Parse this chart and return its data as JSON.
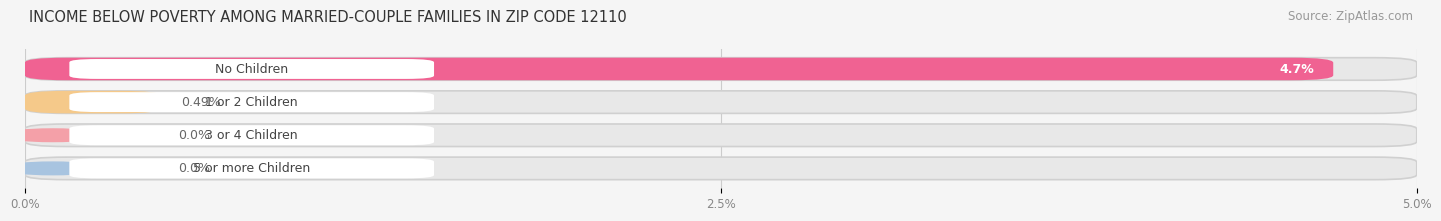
{
  "title": "INCOME BELOW POVERTY AMONG MARRIED-COUPLE FAMILIES IN ZIP CODE 12110",
  "source": "Source: ZipAtlas.com",
  "categories": [
    "No Children",
    "1 or 2 Children",
    "3 or 4 Children",
    "5 or more Children"
  ],
  "values": [
    4.7,
    0.49,
    0.0,
    0.0
  ],
  "bar_colors": [
    "#f06292",
    "#f5c98a",
    "#f4a0a8",
    "#a8c4e0"
  ],
  "value_labels": [
    "4.7%",
    "0.49%",
    "0.0%",
    "0.0%"
  ],
  "value_inside": [
    true,
    false,
    false,
    false
  ],
  "xlim": [
    0,
    5.0
  ],
  "xticks": [
    0.0,
    2.5,
    5.0
  ],
  "xtick_labels": [
    "0.0%",
    "2.5%",
    "5.0%"
  ],
  "bg_color": "#f5f5f5",
  "bar_bg_color": "#e8e8e8",
  "bar_border_color": "#d8d8d8",
  "title_fontsize": 10.5,
  "source_fontsize": 8.5,
  "label_fontsize": 9,
  "value_fontsize": 9
}
